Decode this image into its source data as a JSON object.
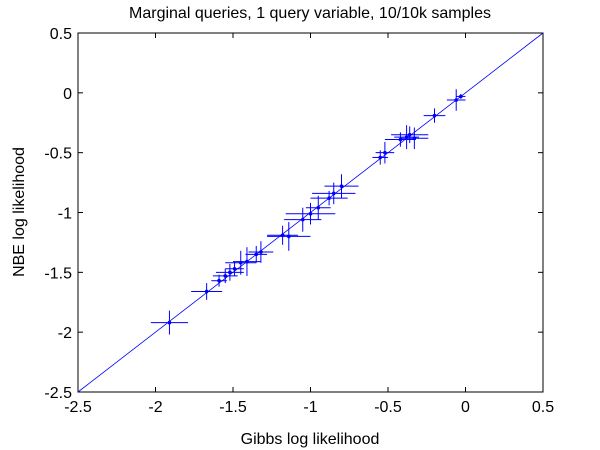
{
  "chart_data": {
    "type": "errorbar-scatter",
    "title": "Marginal queries, 1 query variable, 10/10k samples",
    "x_label": "Gibbs log likelihood",
    "y_label": "NBE log likelihood",
    "xlim": [
      -2.5,
      0.5
    ],
    "ylim": [
      -2.5,
      0.5
    ],
    "xticks": [
      -2.5,
      -2,
      -1.5,
      -1,
      -0.5,
      0,
      0.5
    ],
    "yticks": [
      -2.5,
      -2,
      -1.5,
      -1,
      -0.5,
      0,
      0.5
    ],
    "diagonal": true,
    "series": [
      {
        "color": "#0000ff",
        "x": [
          -1.91,
          -1.67,
          -1.59,
          -1.55,
          -1.52,
          -1.49,
          -1.45,
          -1.41,
          -1.35,
          -1.32,
          -1.18,
          -1.14,
          -1.05,
          -1.0,
          -0.95,
          -0.88,
          -0.85,
          -0.8,
          -0.55,
          -0.52,
          -0.42,
          -0.38,
          -0.36,
          -0.33,
          -0.2,
          -0.06,
          -0.03
        ],
        "values": [
          -1.92,
          -1.66,
          -1.57,
          -1.53,
          -1.5,
          -1.47,
          -1.42,
          -1.41,
          -1.35,
          -1.33,
          -1.19,
          -1.2,
          -1.06,
          -1.01,
          -0.96,
          -0.88,
          -0.84,
          -0.78,
          -0.54,
          -0.5,
          -0.39,
          -0.37,
          -0.35,
          -0.38,
          -0.19,
          -0.06,
          -0.03
        ],
        "xerr": [
          0.12,
          0.1,
          0.05,
          0.08,
          0.09,
          0.06,
          0.1,
          0.09,
          0.07,
          0.08,
          0.1,
          0.14,
          0.12,
          0.16,
          0.08,
          0.12,
          0.14,
          0.11,
          0.05,
          0.06,
          0.1,
          0.08,
          0.12,
          0.09,
          0.07,
          0.06,
          0.03
        ],
        "yerr": [
          0.1,
          0.07,
          0.05,
          0.06,
          0.07,
          0.06,
          0.1,
          0.12,
          0.07,
          0.09,
          0.08,
          0.12,
          0.1,
          0.09,
          0.1,
          0.06,
          0.09,
          0.1,
          0.06,
          0.09,
          0.06,
          0.1,
          0.07,
          0.09,
          0.06,
          0.09,
          0.02
        ]
      }
    ]
  }
}
